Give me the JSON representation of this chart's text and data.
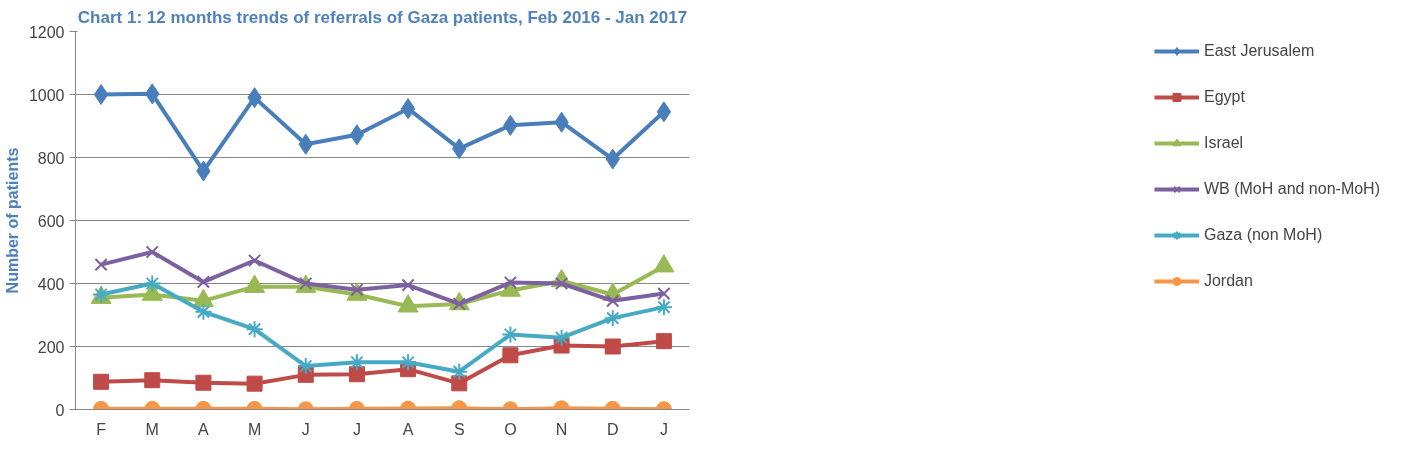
{
  "chart_data": {
    "type": "line",
    "title": "Chart 1: 12 months trends of referrals of Gaza patients, Feb 2016 - Jan 2017",
    "ylabel": "Number of patients",
    "categories": [
      "F",
      "M",
      "A",
      "M",
      "J",
      "J",
      "A",
      "S",
      "O",
      "N",
      "D",
      "J"
    ],
    "ylim": [
      0,
      1200
    ],
    "yticks": [
      0,
      200,
      400,
      600,
      800,
      1000,
      1200
    ],
    "grid": "y",
    "legend": "right",
    "series": [
      {
        "name": "East Jerusalem",
        "color": "#4a7ebb",
        "marker": "diamond",
        "values": [
          1000,
          1002,
          757,
          990,
          842,
          872,
          955,
          828,
          902,
          912,
          795,
          945
        ]
      },
      {
        "name": "Egypt",
        "color": "#be4b48",
        "marker": "square",
        "values": [
          88,
          93,
          85,
          82,
          110,
          112,
          128,
          83,
          172,
          203,
          200,
          217
        ]
      },
      {
        "name": "Israel",
        "color": "#98b954",
        "marker": "triangle",
        "values": [
          355,
          365,
          345,
          390,
          390,
          365,
          328,
          335,
          378,
          408,
          365,
          455
        ]
      },
      {
        "name": "WB (MoH and non-MoH)",
        "color": "#7d60a0",
        "marker": "x",
        "values": [
          460,
          500,
          405,
          473,
          400,
          380,
          395,
          335,
          403,
          400,
          345,
          368
        ]
      },
      {
        "name": "Gaza (non MoH)",
        "color": "#46aac5",
        "marker": "cross",
        "values": [
          365,
          400,
          310,
          255,
          138,
          150,
          150,
          120,
          238,
          228,
          290,
          325
        ]
      },
      {
        "name": "Jordan",
        "color": "#f79646",
        "marker": "circle",
        "values": [
          2,
          2,
          2,
          2,
          1,
          2,
          3,
          4,
          1,
          4,
          2,
          1
        ]
      }
    ]
  }
}
